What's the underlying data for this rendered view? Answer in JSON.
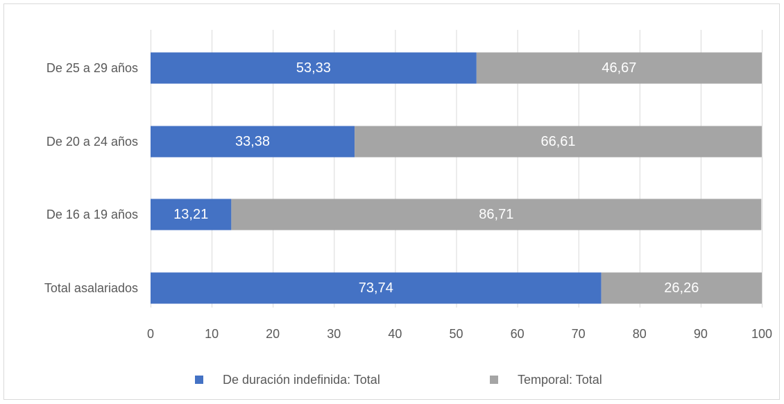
{
  "chart_data": {
    "type": "bar",
    "orientation": "horizontal",
    "stacked": true,
    "title": "",
    "xlabel": "",
    "ylabel": "",
    "categories": [
      "De 25 a 29 años",
      "De 20 a 24 años",
      "De 16 a 19 años",
      "Total asalariados"
    ],
    "series": [
      {
        "name": "De duración indefinida: Total",
        "color": "#4472c4",
        "values": [
          53.33,
          33.38,
          13.21,
          73.74
        ],
        "labels": [
          "53,33",
          "33,38",
          "13,21",
          "73,74"
        ]
      },
      {
        "name": "Temporal: Total",
        "color": "#a5a5a5",
        "values": [
          46.67,
          66.61,
          86.71,
          26.26
        ],
        "labels": [
          "46,67",
          "66,61",
          "86,71",
          "26,26"
        ]
      }
    ],
    "xlim": [
      0,
      100
    ],
    "xticks": [
      0,
      10,
      20,
      30,
      40,
      50,
      60,
      70,
      80,
      90,
      100
    ],
    "xtick_labels": [
      "0",
      "10",
      "20",
      "30",
      "40",
      "50",
      "60",
      "70",
      "80",
      "90",
      "100"
    ],
    "grid": "vertical",
    "legend_position": "bottom"
  },
  "colors": {
    "grid": "#d9d9d9",
    "axis_text": "#595959",
    "border": "#d9d9d9"
  }
}
